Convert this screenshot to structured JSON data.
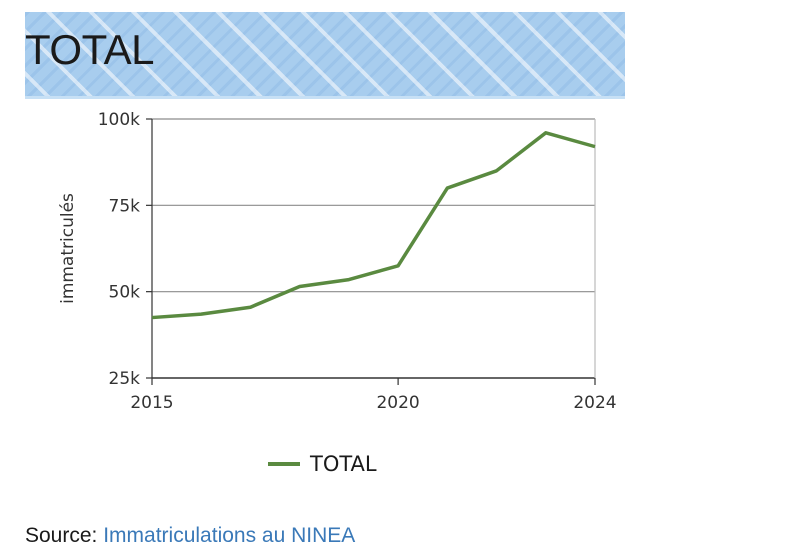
{
  "banner": {
    "title": "TOTAL"
  },
  "chart_data": {
    "type": "line",
    "title": "TOTAL",
    "ylabel": "immatriculés",
    "xlabel": "",
    "x": [
      2015,
      2016,
      2017,
      2018,
      2019,
      2020,
      2021,
      2022,
      2023,
      2024
    ],
    "series": [
      {
        "name": "TOTAL",
        "color": "#5a8a40",
        "values": [
          42500,
          43500,
          45500,
          51500,
          53500,
          57500,
          80000,
          85000,
          96000,
          92000
        ]
      }
    ],
    "xlim": [
      2015,
      2024
    ],
    "ylim": [
      25000,
      100000
    ],
    "xticks": [
      2015,
      2020,
      2024
    ],
    "xtick_labels": [
      "2015",
      "2020",
      "2024"
    ],
    "yticks": [
      25000,
      50000,
      75000,
      100000
    ],
    "ytick_labels": [
      "25k",
      "50k",
      "75k",
      "100k"
    ],
    "grid": "horizontal",
    "legend": "bottom-center"
  },
  "legend": {
    "label": "TOTAL",
    "color": "#5a8a40"
  },
  "source": {
    "prefix": "Source:",
    "link_text": "Immatriculations au NINEA",
    "link_color": "#3a79b8"
  }
}
